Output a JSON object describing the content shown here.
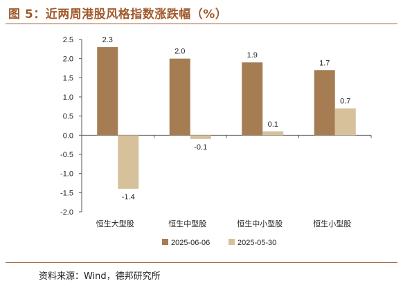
{
  "title": "图 5：近两周港股风格指数涨跌幅（%）",
  "source": "资料来源：Wind，德邦研究所",
  "colors": {
    "accent": "#a05a2c",
    "series1": "#a67c52",
    "series2": "#d6c19a"
  },
  "chart_data": {
    "type": "bar",
    "categories": [
      "恒生大型股",
      "恒生中型股",
      "恒生中小型股",
      "恒生小型股"
    ],
    "series": [
      {
        "name": "2025-06-06",
        "values": [
          2.3,
          2.0,
          1.9,
          1.7
        ],
        "data_labels": [
          "2.3",
          "2.0",
          "1.9",
          "1.7"
        ]
      },
      {
        "name": "2025-05-30",
        "values": [
          -1.4,
          -0.1,
          0.1,
          0.7
        ],
        "data_labels": [
          "-1.4",
          "-0.1",
          "0.1",
          "0.7"
        ]
      }
    ],
    "ylim": [
      -2.0,
      2.5
    ],
    "yticks": [
      2.5,
      2.0,
      1.5,
      1.0,
      0.5,
      0.0,
      -0.5,
      -1.0,
      -1.5,
      -2.0
    ],
    "ytick_labels": [
      "2.5",
      "2.0",
      "1.5",
      "1.0",
      "0.5",
      "0.0",
      "-0.5",
      "-1.0",
      "-1.5",
      "-2.0"
    ],
    "grid": false,
    "legend_position": "bottom-center"
  }
}
